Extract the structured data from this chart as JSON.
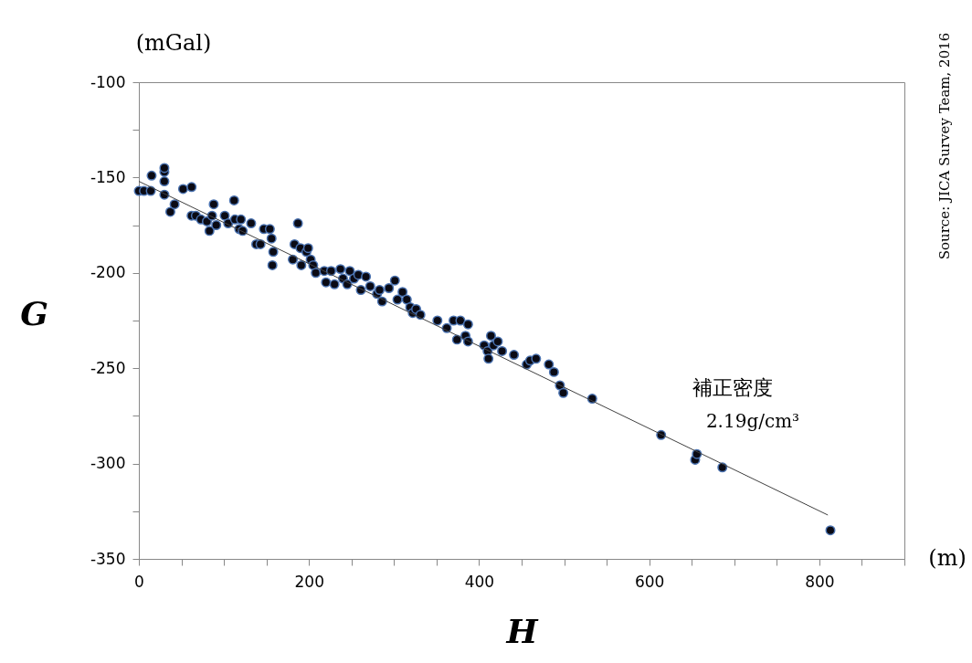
{
  "chart_data": {
    "type": "scatter",
    "xlabel": "H",
    "ylabel": "G",
    "annotations": [
      "(mGal)",
      "(m)",
      "補正密度",
      "2.19g/cm³",
      "Source:  JICA  Survey  Team,  2016"
    ],
    "xlim": [
      0,
      900
    ],
    "ylim": [
      -350,
      -100
    ],
    "xticks": [
      0,
      {
        "value": 50,
        "label": null
      },
      {
        "value": 100,
        "label": null
      },
      {
        "value": 150,
        "label": null
      },
      200,
      {
        "value": 250,
        "label": null
      },
      {
        "value": 300,
        "label": null
      },
      {
        "value": 350,
        "label": null
      },
      400,
      {
        "value": 450,
        "label": null
      },
      {
        "value": 500,
        "label": null
      },
      {
        "value": 550,
        "label": null
      },
      600,
      {
        "value": 650,
        "label": null
      },
      {
        "value": 700,
        "label": null
      },
      {
        "value": 750,
        "label": null
      },
      800,
      {
        "value": 850,
        "label": null
      },
      {
        "value": 900,
        "label": null
      }
    ],
    "yticks": [
      -350,
      {
        "value": -325,
        "label": null
      },
      -300,
      {
        "value": -275,
        "label": null
      },
      -250,
      {
        "value": -225,
        "label": null
      },
      -200,
      {
        "value": -175,
        "label": null
      },
      -150,
      {
        "value": -125,
        "label": null
      },
      -100
    ],
    "grid": false,
    "series": [
      {
        "color": "#0a0a14",
        "marker": "circle",
        "x": [
          0,
          6,
          14,
          15,
          30,
          30,
          30,
          30,
          37,
          42,
          52,
          62,
          62,
          67,
          73,
          80,
          83,
          86,
          88,
          91,
          101,
          105,
          112,
          113,
          118,
          120,
          122,
          132,
          138,
          143,
          147,
          154,
          156,
          158,
          157,
          181,
          183,
          190,
          187,
          191,
          197,
          199,
          202,
          205,
          208,
          218,
          220,
          226,
          230,
          237,
          240,
          245,
          248,
          253,
          258,
          261,
          267,
          272,
          280,
          283,
          286,
          294,
          301,
          304,
          310,
          315,
          319,
          322,
          326,
          331,
          351,
          362,
          370,
          374,
          378,
          384,
          387,
          387,
          406,
          410,
          411,
          414,
          417,
          422,
          427,
          441,
          456,
          460,
          467,
          482,
          488,
          495,
          499,
          533,
          614,
          654,
          656,
          686,
          813
        ],
        "values": [
          -157,
          -157,
          -157,
          -149,
          -147,
          -145,
          -152,
          -159,
          -168,
          -164,
          -156,
          -155,
          -170,
          -170,
          -172,
          -173,
          -178,
          -170,
          -164,
          -175,
          -170,
          -174,
          -162,
          -172,
          -177,
          -172,
          -178,
          -174,
          -185,
          -185,
          -177,
          -177,
          -182,
          -189,
          -196,
          -193,
          -185,
          -187,
          -174,
          -196,
          -189,
          -187,
          -193,
          -196,
          -200,
          -199,
          -205,
          -199,
          -206,
          -198,
          -203,
          -206,
          -199,
          -203,
          -201,
          -209,
          -202,
          -207,
          -211,
          -209,
          -215,
          -208,
          -204,
          -214,
          -210,
          -214,
          -218,
          -221,
          -219,
          -222,
          -225,
          -229,
          -225,
          -235,
          -225,
          -233,
          -227,
          -236,
          -238,
          -241,
          -245,
          -233,
          -238,
          -236,
          -241,
          -243,
          -248,
          -246,
          -245,
          -248,
          -252,
          -259,
          -263,
          -266,
          -285,
          -298,
          -295,
          -302,
          -335
        ]
      },
      {
        "type": "line",
        "color": "#404040",
        "x": [
          0,
          810
        ],
        "values": [
          -152,
          -327
        ]
      }
    ]
  }
}
